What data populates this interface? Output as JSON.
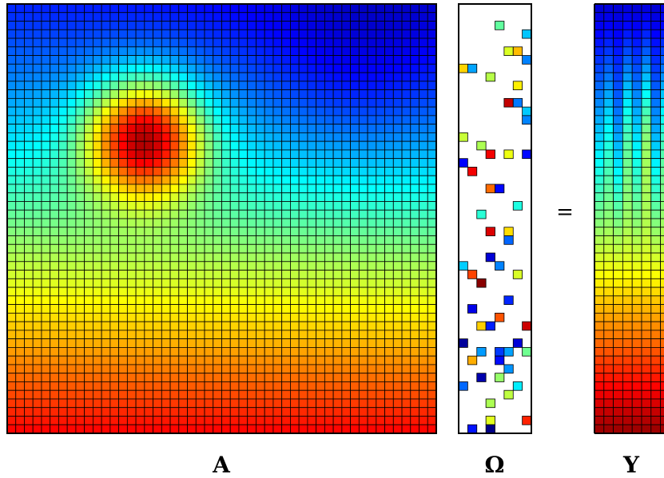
{
  "labels": {
    "A": "A",
    "omega": "Ω",
    "Y": "Y",
    "equals": "="
  },
  "colormap": "jet",
  "matrices": {
    "A": {
      "rows": 50,
      "cols": 50,
      "description_kind": "smooth field"
    },
    "omega": {
      "rows": 50,
      "cols": 8,
      "sparse": true
    },
    "Y": {
      "rows": 50,
      "cols": 8
    }
  }
}
